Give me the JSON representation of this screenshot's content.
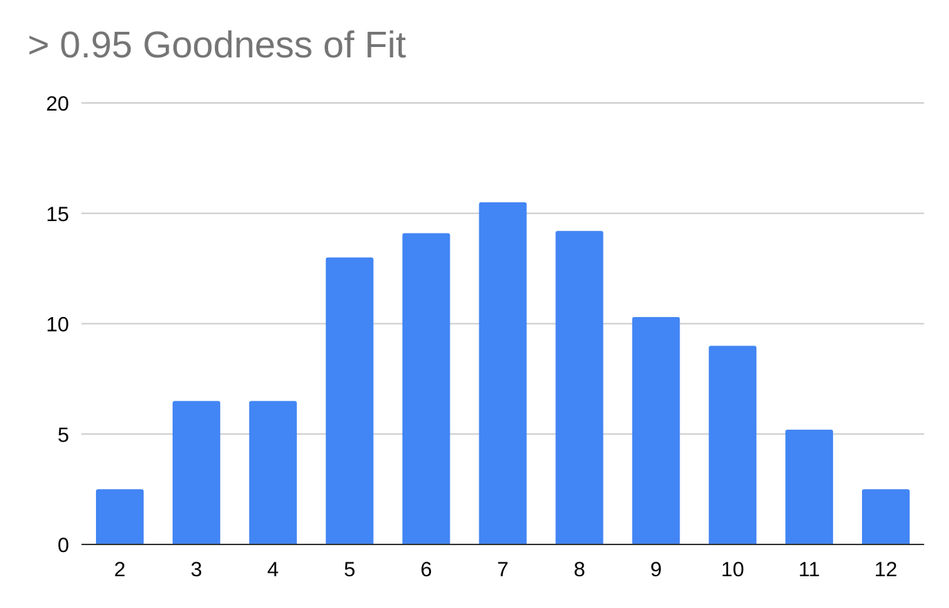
{
  "chart_data": {
    "type": "bar",
    "title": "> 0.95 Goodness of Fit",
    "xlabel": "",
    "ylabel": "",
    "categories": [
      "2",
      "3",
      "4",
      "5",
      "6",
      "7",
      "8",
      "9",
      "10",
      "11",
      "12"
    ],
    "values": [
      2.5,
      6.5,
      6.5,
      13.0,
      14.1,
      15.5,
      14.2,
      10.3,
      9.0,
      5.2,
      2.5
    ],
    "ylim": [
      0,
      20
    ],
    "yticks": [
      0,
      5,
      10,
      15,
      20
    ],
    "grid": true,
    "legend": "none",
    "colors": {
      "bar": "#4285f4",
      "grid": "#cccccc",
      "axis": "#333333",
      "title": "#757575"
    }
  }
}
